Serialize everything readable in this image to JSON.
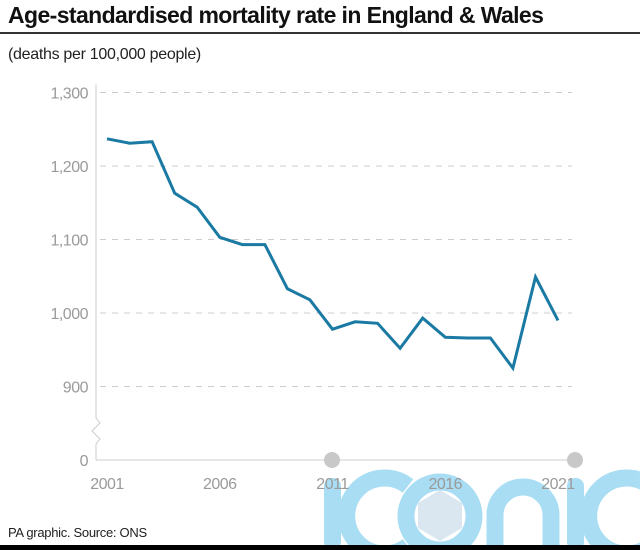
{
  "header": {
    "title": "Age-standardised mortality rate in England & Wales",
    "subtitle": "(deaths per 100,000 people)"
  },
  "footer": {
    "source": "PA graphic. Source: ONS"
  },
  "watermark": {
    "text": "iconic",
    "color": "#8fd3f2"
  },
  "colors": {
    "line": "#1a7aa3",
    "grid": "#cccccc",
    "axis": "#cccccc",
    "tick_text": "#9a9a9a"
  },
  "chart_data": {
    "type": "line",
    "title": "Age-standardised mortality rate in England & Wales",
    "subtitle": "(deaths per 100,000 people)",
    "xlabel": "",
    "ylabel": "",
    "x": [
      2001,
      2002,
      2003,
      2004,
      2005,
      2006,
      2007,
      2008,
      2009,
      2010,
      2011,
      2012,
      2013,
      2014,
      2015,
      2016,
      2017,
      2018,
      2019,
      2020,
      2021
    ],
    "series": [
      {
        "name": "Age-standardised mortality rate",
        "values": [
          1237,
          1231,
          1233,
          1163,
          1144,
          1103,
          1093,
          1093,
          1033,
          1018,
          978,
          988,
          986,
          952,
          993,
          967,
          966,
          966,
          925,
          1049,
          990
        ]
      }
    ],
    "x_ticks": [
      2001,
      2006,
      2011,
      2016,
      2021
    ],
    "x_tick_labels": [
      "2001",
      "2006",
      "2011",
      "2016",
      "2021"
    ],
    "y_ticks": [
      0,
      900,
      1000,
      1100,
      1200,
      1300
    ],
    "y_tick_labels": [
      "0",
      "900",
      "1,000",
      "1,100",
      "1,200",
      "1,300"
    ],
    "ylim": [
      0,
      1300
    ],
    "y_axis_break": [
      0,
      900
    ],
    "xlim": [
      2001,
      2021
    ],
    "grid": true,
    "grid_style": "dashed-horizontal",
    "legend": "none"
  }
}
